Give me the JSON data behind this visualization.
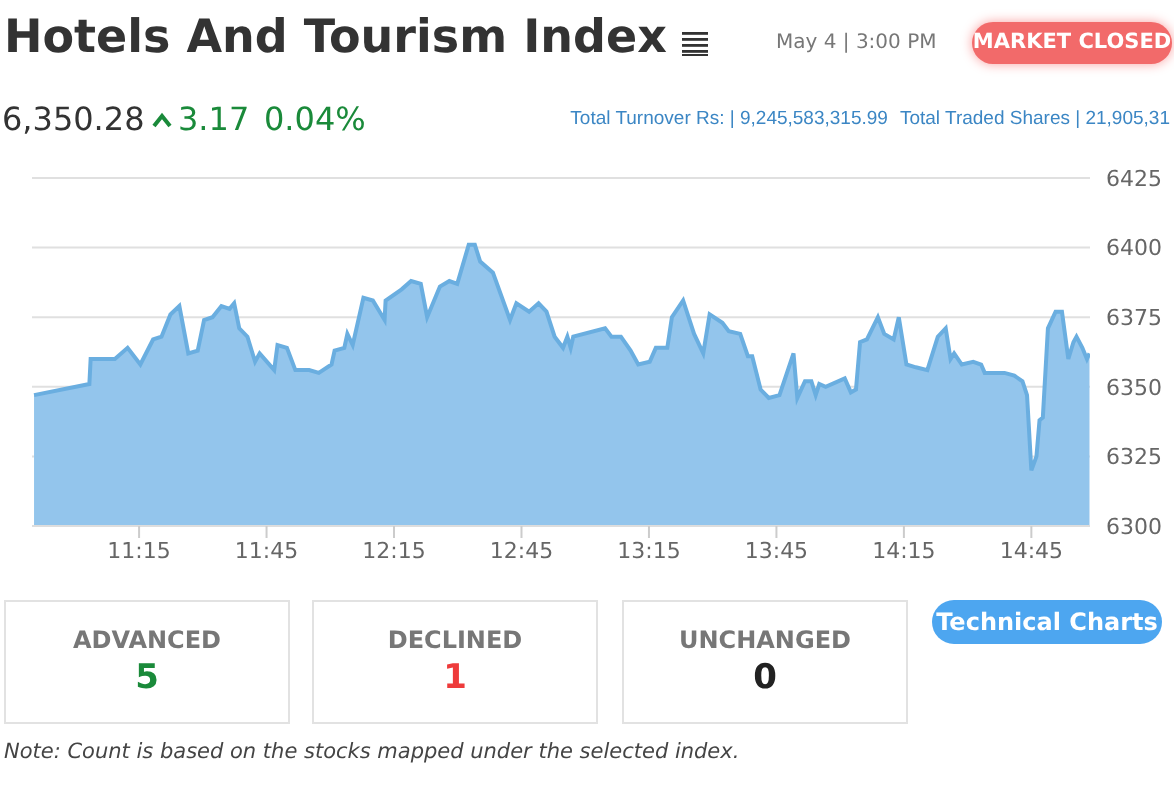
{
  "chart_data": {
    "type": "area",
    "title": "Hotels And Tourism Index",
    "annotations": [
      "May 4 | 3:00 PM",
      "MARKET CLOSED",
      "6,350.28",
      "3.17",
      "0.04%",
      "Total Turnover Rs: | 9,245,583,315.99",
      "Total Traded Shares | 21,905,31",
      "ADVANCED",
      "5",
      "DECLINED",
      "1",
      "UNCHANGED",
      "0",
      "Technical Charts",
      "Note: Count is based on the stocks mapped under the selected index."
    ],
    "x": [
      10.838,
      11.055,
      11.06,
      11.155,
      11.205,
      11.255,
      11.305,
      11.338,
      11.373,
      11.408,
      11.443,
      11.48,
      11.505,
      11.538,
      11.573,
      11.605,
      11.623,
      11.643,
      11.675,
      11.705,
      11.723,
      11.78,
      11.793,
      11.83,
      11.863,
      11.917,
      11.955,
      12.005,
      12.017,
      12.055,
      12.067,
      12.088,
      12.13,
      12.167,
      12.213,
      12.217,
      12.28,
      12.317,
      12.355,
      12.38,
      12.43,
      12.467,
      12.498,
      12.543,
      12.567,
      12.588,
      12.638,
      12.705,
      12.73,
      12.78,
      12.817,
      12.848,
      12.88,
      12.913,
      12.93,
      12.943,
      12.953,
      13.078,
      13.103,
      13.14,
      13.178,
      13.208,
      13.253,
      13.277,
      13.322,
      13.34,
      13.384,
      13.427,
      13.463,
      13.488,
      13.538,
      13.563,
      13.608,
      13.638,
      13.655,
      13.688,
      13.72,
      13.762,
      13.817,
      13.832,
      13.862,
      13.887,
      13.904,
      13.918,
      13.943,
      14.018,
      14.042,
      14.062,
      14.078,
      14.105,
      14.148,
      14.173,
      14.21,
      14.23,
      14.26,
      14.297,
      14.342,
      14.383,
      14.414,
      14.433,
      14.447,
      14.477,
      14.522,
      14.553,
      14.567,
      14.645,
      14.683,
      14.715,
      14.733,
      14.75,
      14.77,
      14.782,
      14.795,
      14.815,
      14.845,
      14.87,
      14.895,
      14.915,
      14.927,
      14.95,
      14.968,
      14.978
    ],
    "series": [
      {
        "color": "#93c5ec",
        "values": [
          6347,
          6351,
          6360,
          6360,
          6364,
          6358,
          6367,
          6368,
          6376,
          6379,
          6362,
          6363,
          6374,
          6375,
          6379,
          6378,
          6380,
          6371,
          6368,
          6359,
          6362,
          6356,
          6365,
          6364,
          6356,
          6356,
          6355,
          6358,
          6363,
          6364,
          6369,
          6365,
          6382,
          6381,
          6374,
          6381,
          6385,
          6388,
          6387,
          6375,
          6386,
          6388,
          6387,
          6401,
          6401,
          6395,
          6391,
          6374,
          6380,
          6377,
          6380,
          6377,
          6368,
          6364,
          6368,
          6364,
          6368,
          6371,
          6368,
          6368,
          6363,
          6358,
          6359,
          6364,
          6364,
          6375,
          6381,
          6369,
          6362,
          6376,
          6373,
          6370,
          6369,
          6361,
          6361,
          6349,
          6346,
          6347,
          6362,
          6346,
          6352,
          6352,
          6347,
          6351,
          6350,
          6353,
          6348,
          6349,
          6366,
          6367,
          6375,
          6369,
          6367,
          6375,
          6358,
          6357,
          6356,
          6368,
          6371,
          6360,
          6362,
          6358,
          6359,
          6358,
          6355,
          6355,
          6354,
          6352,
          6347,
          6320,
          6325,
          6338,
          6339,
          6371,
          6377,
          6377,
          6360,
          6366,
          6368,
          6364,
          6360,
          6362
        ]
      }
    ],
    "xlim": [
      10.83,
      14.98
    ],
    "xticks": [
      {
        "value": 11.25,
        "label": "11:15"
      },
      {
        "value": 11.75,
        "label": "11:45"
      },
      {
        "value": 12.25,
        "label": "12:15"
      },
      {
        "value": 12.75,
        "label": "12:45"
      },
      {
        "value": 13.25,
        "label": "13:15"
      },
      {
        "value": 13.75,
        "label": "13:45"
      },
      {
        "value": 14.25,
        "label": "14:15"
      },
      {
        "value": 14.75,
        "label": "14:45"
      }
    ],
    "ylim": [
      6300,
      6425
    ],
    "yticks": [
      6300,
      6325,
      6350,
      6375,
      6400,
      6425
    ],
    "grid": "y"
  }
}
